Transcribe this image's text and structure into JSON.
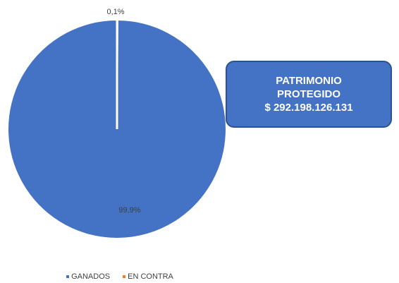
{
  "chart_data": {
    "type": "pie",
    "categories": [
      "GANADOS",
      "EN CONTRA"
    ],
    "values": [
      99.9,
      0.1
    ],
    "data_labels": [
      "99,9%",
      "0,1%"
    ],
    "colors": [
      "#4472c4",
      "#ed7d31"
    ],
    "legend_position": "bottom"
  },
  "callout": {
    "line1": "PATRIMONIO",
    "line2": "PROTEGIDO",
    "line3": "$ 292.198.126.131"
  }
}
